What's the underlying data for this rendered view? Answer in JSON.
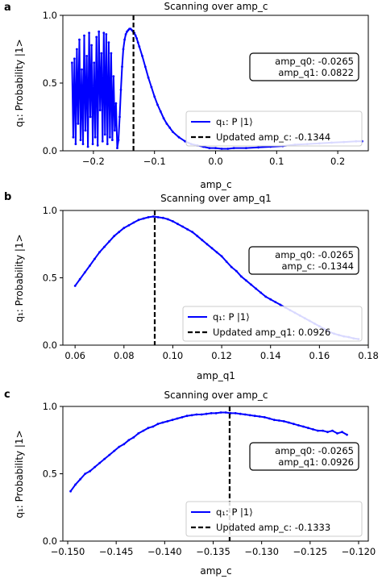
{
  "chart_data": [
    {
      "panel": "a",
      "type": "line",
      "title": "Scanning over amp_c",
      "xlabel": "amp_c",
      "ylabel": "q₁: Probability |1>",
      "xlim": [
        -0.25,
        0.25
      ],
      "ylim": [
        0.0,
        1.0
      ],
      "xticks": [
        -0.2,
        -0.1,
        0.0,
        0.1,
        0.2
      ],
      "xtick_labels": [
        "−0.2",
        "−0.1",
        "0.0",
        "0.1",
        "0.2"
      ],
      "yticks": [
        0.0,
        0.5,
        1.0
      ],
      "ytick_labels": [
        "0.0",
        "0.5",
        "1.0"
      ],
      "series_label": "q₁: P |1⟩",
      "x": [
        -0.235,
        -0.233,
        -0.231,
        -0.229,
        -0.227,
        -0.225,
        -0.223,
        -0.221,
        -0.219,
        -0.217,
        -0.215,
        -0.213,
        -0.211,
        -0.209,
        -0.207,
        -0.205,
        -0.203,
        -0.201,
        -0.199,
        -0.197,
        -0.195,
        -0.193,
        -0.191,
        -0.189,
        -0.187,
        -0.185,
        -0.183,
        -0.181,
        -0.179,
        -0.177,
        -0.175,
        -0.173,
        -0.171,
        -0.169,
        -0.167,
        -0.165,
        -0.163,
        -0.161,
        -0.159,
        -0.157,
        -0.155,
        -0.153,
        -0.151,
        -0.149,
        -0.147,
        -0.145,
        -0.143,
        -0.141,
        -0.139,
        -0.137,
        -0.135,
        -0.133,
        -0.131,
        -0.129,
        -0.127,
        -0.125,
        -0.12,
        -0.115,
        -0.11,
        -0.105,
        -0.1,
        -0.095,
        -0.09,
        -0.085,
        -0.08,
        -0.075,
        -0.07,
        -0.06,
        -0.05,
        -0.04,
        -0.03,
        -0.02,
        -0.01,
        0.0,
        0.01,
        0.02,
        0.03,
        0.05,
        0.07,
        0.09,
        0.11,
        0.13,
        0.15,
        0.17,
        0.19,
        0.21,
        0.23,
        0.24
      ],
      "y": [
        0.65,
        0.1,
        0.68,
        0.05,
        0.75,
        0.2,
        0.82,
        0.08,
        0.6,
        0.05,
        0.85,
        0.15,
        0.7,
        0.03,
        0.87,
        0.25,
        0.78,
        0.05,
        0.65,
        0.1,
        0.84,
        0.04,
        0.88,
        0.3,
        0.72,
        0.07,
        0.87,
        0.12,
        0.86,
        0.05,
        0.8,
        0.1,
        0.72,
        0.08,
        0.55,
        0.15,
        0.35,
        0.02,
        0.08,
        0.25,
        0.45,
        0.62,
        0.75,
        0.82,
        0.86,
        0.88,
        0.89,
        0.9,
        0.9,
        0.89,
        0.88,
        0.87,
        0.85,
        0.83,
        0.8,
        0.77,
        0.7,
        0.62,
        0.54,
        0.47,
        0.4,
        0.34,
        0.29,
        0.24,
        0.2,
        0.17,
        0.14,
        0.1,
        0.07,
        0.05,
        0.04,
        0.03,
        0.02,
        0.02,
        0.015,
        0.015,
        0.02,
        0.02,
        0.025,
        0.03,
        0.035,
        0.045,
        0.05,
        0.055,
        0.06,
        0.065,
        0.07,
        0.07
      ],
      "vline": -0.1344,
      "vline_label": "Updated amp_c: -0.1344",
      "annotation": [
        "amp_q0: -0.0265",
        "amp_q1: 0.0822"
      ],
      "legend_loc": "lower right",
      "annotation_loc": "right"
    },
    {
      "panel": "b",
      "type": "line",
      "title": "Scanning over amp_q1",
      "xlabel": "amp_q1",
      "ylabel": "q₁: Probability |1>",
      "xlim": [
        0.055,
        0.18
      ],
      "ylim": [
        0.0,
        1.0
      ],
      "xticks": [
        0.06,
        0.08,
        0.1,
        0.12,
        0.14,
        0.16,
        0.18
      ],
      "xtick_labels": [
        "0.06",
        "0.08",
        "0.10",
        "0.12",
        "0.14",
        "0.16",
        "0.18"
      ],
      "yticks": [
        0.0,
        0.5,
        1.0
      ],
      "ytick_labels": [
        "0.0",
        "0.5",
        "1.0"
      ],
      "series_label": "q₁: P |1⟩",
      "x": [
        0.06,
        0.062,
        0.064,
        0.066,
        0.068,
        0.07,
        0.072,
        0.074,
        0.076,
        0.078,
        0.08,
        0.082,
        0.084,
        0.086,
        0.088,
        0.09,
        0.092,
        0.094,
        0.096,
        0.098,
        0.1,
        0.102,
        0.104,
        0.106,
        0.108,
        0.11,
        0.112,
        0.114,
        0.116,
        0.118,
        0.12,
        0.122,
        0.124,
        0.126,
        0.128,
        0.13,
        0.132,
        0.134,
        0.136,
        0.138,
        0.14,
        0.142,
        0.144,
        0.146,
        0.148,
        0.15,
        0.152,
        0.154,
        0.156,
        0.158,
        0.16,
        0.162,
        0.164,
        0.166,
        0.168,
        0.17,
        0.172,
        0.174,
        0.176
      ],
      "y": [
        0.44,
        0.49,
        0.54,
        0.59,
        0.64,
        0.69,
        0.73,
        0.77,
        0.81,
        0.84,
        0.87,
        0.89,
        0.91,
        0.93,
        0.94,
        0.95,
        0.955,
        0.95,
        0.945,
        0.935,
        0.92,
        0.9,
        0.88,
        0.86,
        0.84,
        0.81,
        0.78,
        0.75,
        0.72,
        0.69,
        0.66,
        0.62,
        0.58,
        0.55,
        0.51,
        0.48,
        0.45,
        0.42,
        0.39,
        0.36,
        0.34,
        0.32,
        0.3,
        0.28,
        0.26,
        0.24,
        0.22,
        0.2,
        0.18,
        0.16,
        0.14,
        0.12,
        0.1,
        0.085,
        0.075,
        0.065,
        0.06,
        0.05,
        0.045
      ],
      "vline": 0.0926,
      "vline_label": "Updated amp_q1: 0.0926",
      "annotation": [
        "amp_q0: -0.0265",
        "amp_c: -0.1344"
      ],
      "legend_loc": "lower right",
      "annotation_loc": "right"
    },
    {
      "panel": "c",
      "type": "line",
      "title": "Scanning over amp_c",
      "xlabel": "amp_c",
      "ylabel": "q₁: Probability |1>",
      "xlim": [
        -0.1505,
        -0.119
      ],
      "ylim": [
        0.0,
        1.0
      ],
      "xticks": [
        -0.15,
        -0.145,
        -0.14,
        -0.135,
        -0.13,
        -0.125,
        -0.12
      ],
      "xtick_labels": [
        "−0.150",
        "−0.145",
        "−0.140",
        "−0.135",
        "−0.130",
        "−0.125",
        "−0.120"
      ],
      "yticks": [
        0.0,
        0.5,
        1.0
      ],
      "ytick_labels": [
        "0.0",
        "0.5",
        "1.0"
      ],
      "series_label": "q₁: P |1⟩",
      "x": [
        -0.1497,
        -0.1492,
        -0.1487,
        -0.1482,
        -0.1477,
        -0.1472,
        -0.1467,
        -0.1462,
        -0.1457,
        -0.1452,
        -0.1447,
        -0.1442,
        -0.1437,
        -0.1432,
        -0.1427,
        -0.1422,
        -0.1417,
        -0.1412,
        -0.1407,
        -0.1402,
        -0.1397,
        -0.1392,
        -0.1387,
        -0.1382,
        -0.1377,
        -0.1372,
        -0.1367,
        -0.1362,
        -0.1357,
        -0.1352,
        -0.1347,
        -0.1342,
        -0.1337,
        -0.1332,
        -0.1327,
        -0.1322,
        -0.1317,
        -0.1312,
        -0.1307,
        -0.1302,
        -0.1297,
        -0.1292,
        -0.1287,
        -0.1282,
        -0.1277,
        -0.1272,
        -0.1267,
        -0.1262,
        -0.1257,
        -0.1252,
        -0.1247,
        -0.1242,
        -0.1237,
        -0.1232,
        -0.1227,
        -0.1222,
        -0.1217,
        -0.1212
      ],
      "y": [
        0.37,
        0.42,
        0.46,
        0.5,
        0.52,
        0.55,
        0.58,
        0.61,
        0.64,
        0.67,
        0.7,
        0.72,
        0.75,
        0.77,
        0.8,
        0.82,
        0.84,
        0.85,
        0.87,
        0.88,
        0.89,
        0.9,
        0.91,
        0.92,
        0.93,
        0.935,
        0.94,
        0.94,
        0.945,
        0.95,
        0.95,
        0.955,
        0.955,
        0.95,
        0.95,
        0.945,
        0.94,
        0.935,
        0.93,
        0.925,
        0.92,
        0.91,
        0.9,
        0.895,
        0.89,
        0.88,
        0.87,
        0.86,
        0.85,
        0.84,
        0.83,
        0.82,
        0.82,
        0.81,
        0.82,
        0.8,
        0.81,
        0.79
      ],
      "vline": -0.1333,
      "vline_label": "Updated amp_c: -0.1333",
      "annotation": [
        "amp_q0: -0.0265",
        "amp_q1: 0.0926"
      ],
      "legend_loc": "lower right",
      "annotation_loc": "right"
    }
  ],
  "colors": {
    "series": "#0000ff",
    "vline": "#000000",
    "axis": "#000000",
    "background": "#ffffff"
  }
}
